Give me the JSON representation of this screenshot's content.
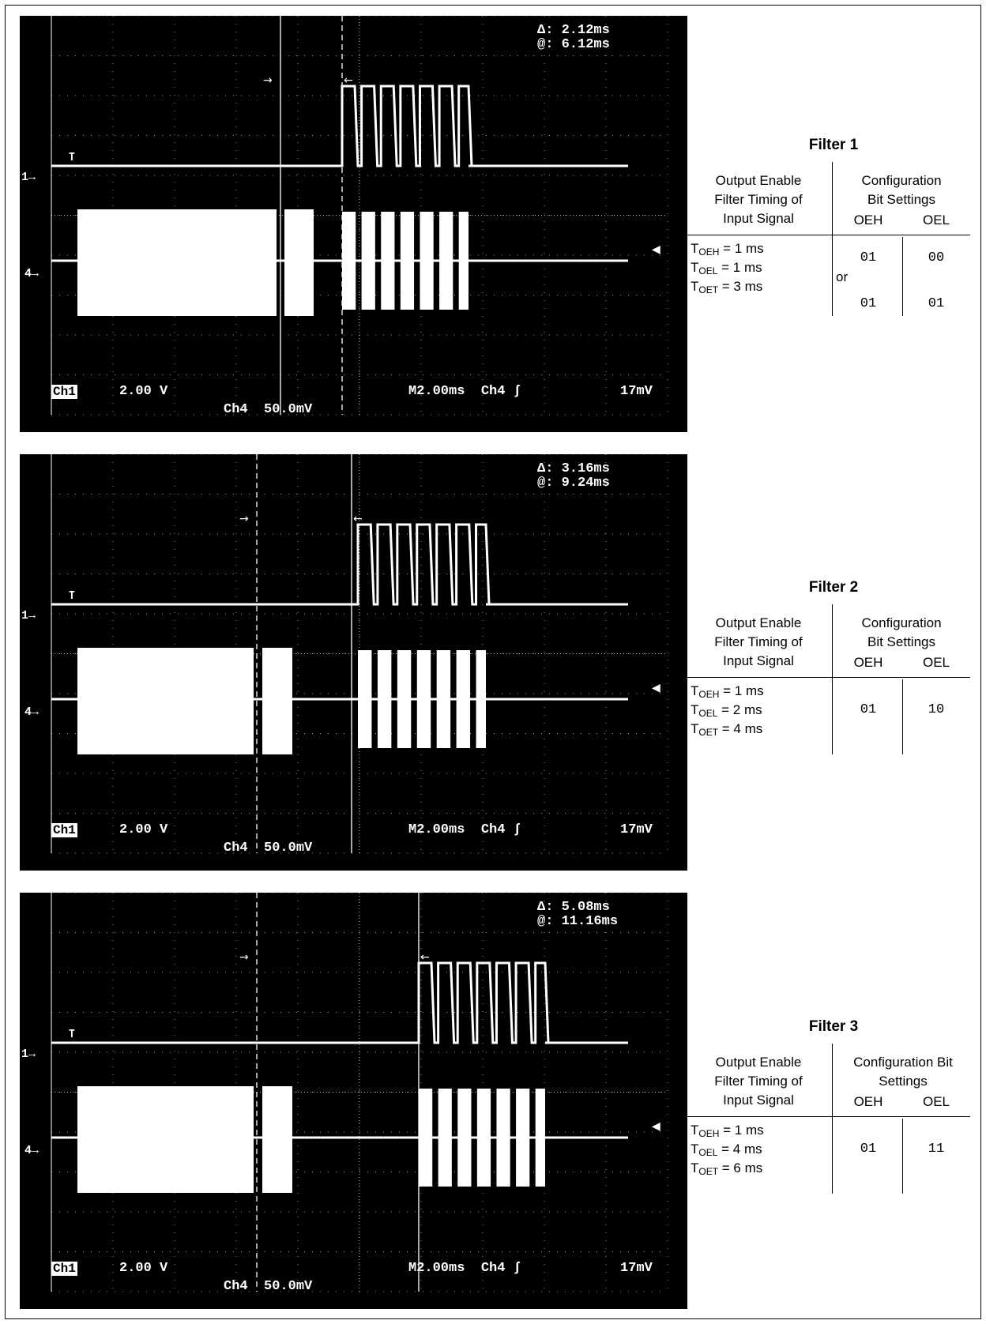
{
  "scopes": [
    {
      "delta": "Δ: 2.12ms",
      "at": "@: 6.12ms",
      "ch1_label": "Ch1",
      "ch1_volts": "2.00 V",
      "ch4_volts": "Ch4  50.0mV",
      "timebase": "M2.00ms  Ch4 ʃ",
      "trigger": "17mV",
      "ch1_marker": "1→",
      "ch4_marker": "4→"
    },
    {
      "delta": "Δ: 3.16ms",
      "at": "@: 9.24ms",
      "ch1_label": "Ch1",
      "ch1_volts": "2.00 V",
      "ch4_volts": "Ch4  50.0mV",
      "timebase": "M2.00ms  Ch4 ʃ",
      "trigger": "17mV",
      "ch1_marker": "1→",
      "ch4_marker": "4→"
    },
    {
      "delta": "Δ: 5.08ms",
      "at": "@: 11.16ms",
      "ch1_label": "Ch1",
      "ch1_volts": "2.00 V",
      "ch4_volts": "Ch4  50.0mV",
      "timebase": "M2.00ms  Ch4 ʃ",
      "trigger": "17mV",
      "ch1_marker": "1→",
      "ch4_marker": "4→"
    }
  ],
  "filters": [
    {
      "title": "Filter 1",
      "col1_header": [
        "Output Enable",
        "Filter Timing of",
        "Input Signal"
      ],
      "col2_header": [
        "Configuration",
        "Bit Settings"
      ],
      "oeh_label": "OEH",
      "oel_label": "OEL",
      "timing": [
        {
          "sym": "T",
          "sub": "OEH",
          "val": " = 1 ms"
        },
        {
          "sym": "T",
          "sub": "OEL",
          "val": " = 1 ms"
        },
        {
          "sym": "T",
          "sub": "OET",
          "val": " = 3 ms"
        }
      ],
      "oeh_values": [
        "01",
        "01"
      ],
      "oel_values": [
        "00",
        "01"
      ],
      "or_text": "or"
    },
    {
      "title": "Filter 2",
      "col1_header": [
        "Output Enable",
        "Filter Timing of",
        "Input Signal"
      ],
      "col2_header": [
        "Configuration",
        "Bit Settings"
      ],
      "oeh_label": "OEH",
      "oel_label": "OEL",
      "timing": [
        {
          "sym": "T",
          "sub": "OEH",
          "val": " = 1 ms"
        },
        {
          "sym": "T",
          "sub": "OEL",
          "val": " = 2 ms"
        },
        {
          "sym": "T",
          "sub": "OET",
          "val": " = 4 ms"
        }
      ],
      "oeh_values": [
        "01"
      ],
      "oel_values": [
        "10"
      ]
    },
    {
      "title": "Filter 3",
      "col1_header": [
        "Output Enable",
        "Filter Timing of",
        "Input Signal"
      ],
      "col2_header": [
        "Configuration Bit",
        "Settings"
      ],
      "oeh_label": "OEH",
      "oel_label": "OEL",
      "timing": [
        {
          "sym": "T",
          "sub": "OEH",
          "val": " = 1 ms"
        },
        {
          "sym": "T",
          "sub": "OEL",
          "val": " = 4 ms"
        },
        {
          "sym": "T",
          "sub": "OET",
          "val": " = 6 ms"
        }
      ],
      "oeh_values": [
        "01"
      ],
      "oel_values": [
        "11"
      ]
    }
  ]
}
